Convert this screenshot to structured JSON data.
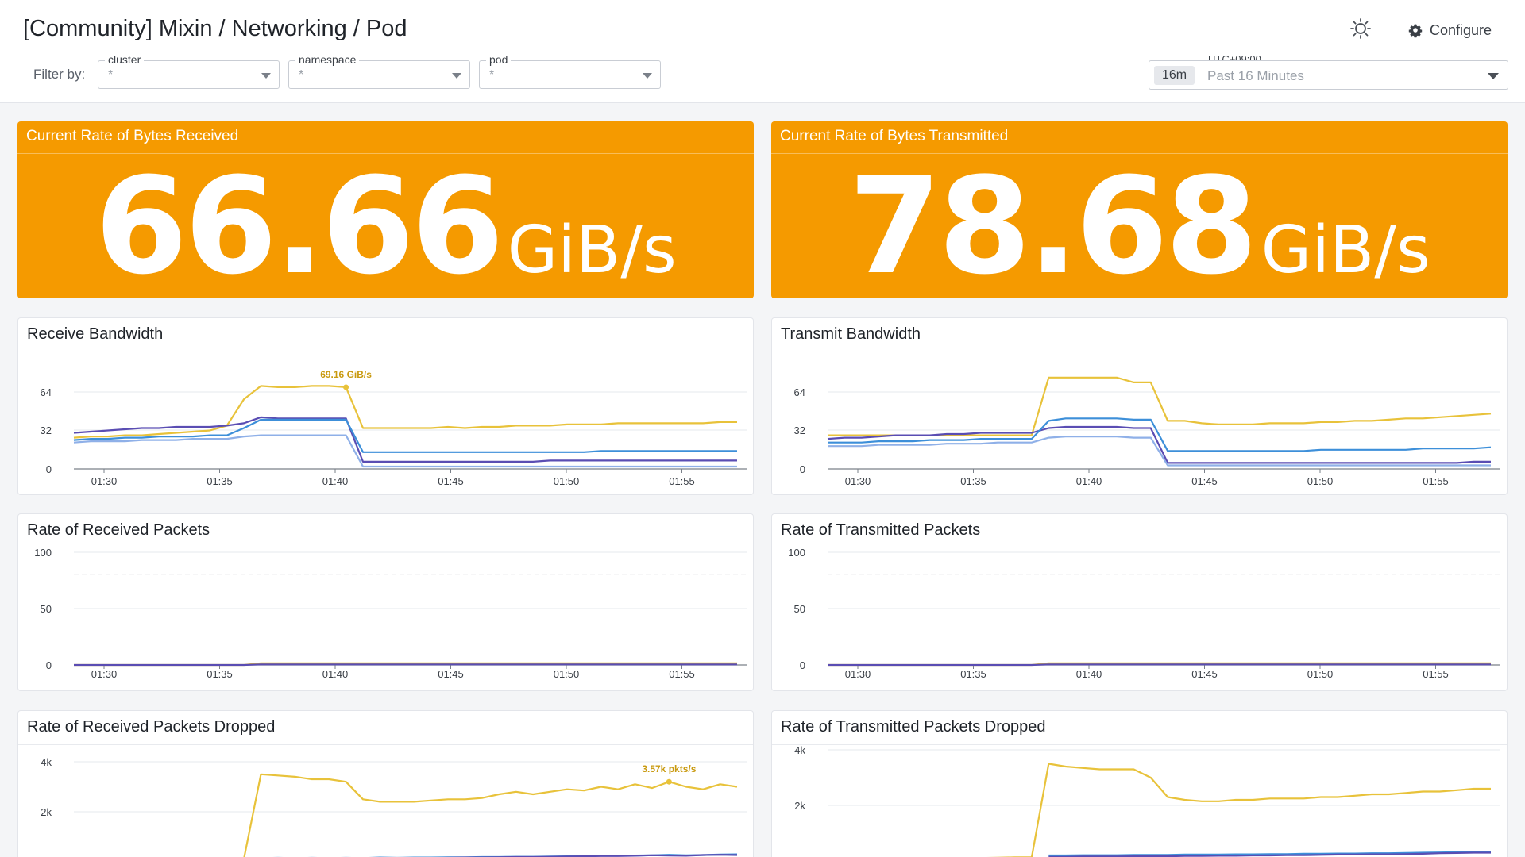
{
  "header": {
    "title": "[Community] Mixin / Networking / Pod",
    "filter_label": "Filter by:",
    "filters": [
      {
        "label": "cluster",
        "value": "*"
      },
      {
        "label": "namespace",
        "value": "*"
      },
      {
        "label": "pod",
        "value": "*"
      }
    ],
    "configure_label": "Configure",
    "timezone": "UTC+09:00",
    "time_chip": "16m",
    "time_range": "Past 16 Minutes"
  },
  "colors": {
    "accent": "#f59a00",
    "yellow": "#e8c23a",
    "purple": "#5a4db3",
    "blue": "#3d8fd9",
    "lightblue": "#8fb0e8"
  },
  "stats": [
    {
      "title": "Current Rate of Bytes Received",
      "value": "66.66",
      "unit": "GiB/s"
    },
    {
      "title": "Current Rate of Bytes Transmitted",
      "value": "78.68",
      "unit": "GiB/s"
    }
  ],
  "chart_data": [
    {
      "title": "Receive Bandwidth",
      "type": "line",
      "x_ticks": [
        "01:30",
        "01:35",
        "01:40",
        "01:45",
        "01:50",
        "01:55"
      ],
      "y_ticks": [
        "0",
        "32",
        "64"
      ],
      "ylim": [
        0,
        80
      ],
      "annotation": "69.16 GiB/s",
      "series": [
        {
          "color": "yellow",
          "values": [
            26,
            27,
            27,
            28,
            28,
            29,
            30,
            31,
            32,
            36,
            58,
            69,
            68,
            68,
            69,
            69,
            68,
            34,
            34,
            34,
            34,
            34,
            35,
            34,
            35,
            35,
            36,
            36,
            36,
            37,
            37,
            37,
            38,
            38,
            38,
            38,
            38,
            38,
            39,
            39
          ]
        },
        {
          "color": "purple",
          "values": [
            30,
            31,
            32,
            33,
            34,
            34,
            35,
            35,
            35,
            36,
            38,
            43,
            42,
            42,
            42,
            42,
            42,
            6,
            6,
            6,
            6,
            6,
            6,
            6,
            6,
            6,
            6,
            6,
            7,
            7,
            7,
            7,
            7,
            7,
            7,
            7,
            7,
            7,
            7,
            7
          ]
        },
        {
          "color": "blue",
          "values": [
            24,
            25,
            25,
            26,
            26,
            27,
            27,
            27,
            28,
            28,
            34,
            41,
            41,
            41,
            41,
            41,
            41,
            14,
            14,
            14,
            14,
            14,
            14,
            14,
            14,
            14,
            14,
            14,
            14,
            14,
            14,
            15,
            15,
            15,
            15,
            15,
            15,
            15,
            15,
            15
          ]
        },
        {
          "color": "lightblue",
          "values": [
            22,
            23,
            23,
            23,
            24,
            24,
            24,
            25,
            25,
            25,
            27,
            28,
            28,
            28,
            28,
            28,
            28,
            2,
            2,
            2,
            2,
            2,
            2,
            2,
            2,
            2,
            2,
            2,
            2,
            2,
            2,
            2,
            2,
            2,
            2,
            2,
            2,
            2,
            2,
            2
          ]
        }
      ]
    },
    {
      "title": "Transmit Bandwidth",
      "type": "line",
      "x_ticks": [
        "01:30",
        "01:35",
        "01:40",
        "01:45",
        "01:50",
        "01:55"
      ],
      "y_ticks": [
        "0",
        "32",
        "64"
      ],
      "ylim": [
        0,
        80
      ],
      "series": [
        {
          "color": "yellow",
          "values": [
            28,
            28,
            28,
            28,
            28,
            28,
            28,
            28,
            28,
            28,
            28,
            28,
            28,
            76,
            76,
            76,
            76,
            76,
            72,
            72,
            40,
            40,
            38,
            37,
            37,
            37,
            38,
            38,
            38,
            39,
            39,
            40,
            40,
            41,
            42,
            42,
            43,
            44,
            45,
            46
          ]
        },
        {
          "color": "purple",
          "values": [
            25,
            26,
            26,
            27,
            28,
            28,
            28,
            29,
            29,
            30,
            30,
            30,
            30,
            34,
            35,
            35,
            35,
            35,
            34,
            34,
            5,
            5,
            5,
            5,
            5,
            5,
            5,
            5,
            5,
            5,
            5,
            5,
            5,
            5,
            5,
            5,
            5,
            5,
            6,
            6
          ]
        },
        {
          "color": "blue",
          "values": [
            22,
            22,
            22,
            23,
            23,
            23,
            24,
            24,
            24,
            25,
            25,
            25,
            25,
            40,
            42,
            42,
            42,
            42,
            41,
            41,
            15,
            15,
            15,
            15,
            15,
            15,
            15,
            15,
            15,
            16,
            16,
            16,
            16,
            16,
            16,
            17,
            17,
            17,
            17,
            18
          ]
        },
        {
          "color": "lightblue",
          "values": [
            19,
            19,
            19,
            20,
            20,
            20,
            20,
            21,
            21,
            21,
            22,
            22,
            22,
            26,
            27,
            27,
            27,
            27,
            26,
            26,
            3,
            3,
            3,
            3,
            3,
            3,
            3,
            3,
            3,
            3,
            3,
            3,
            3,
            3,
            3,
            3,
            3,
            3,
            3,
            3
          ]
        }
      ]
    },
    {
      "title": "Rate of Received Packets",
      "type": "line",
      "x_ticks": [
        "01:30",
        "01:35",
        "01:40",
        "01:45",
        "01:50",
        "01:55"
      ],
      "y_ticks": [
        "0",
        "50",
        "100"
      ],
      "ylim": [
        0,
        100
      ],
      "threshold": 80,
      "series": [
        {
          "color": "yellow",
          "values": [
            0,
            0,
            0,
            0,
            0,
            0,
            0,
            0,
            0,
            0,
            0,
            1.5,
            1.5,
            1.5,
            1.5,
            1.5,
            1.5,
            1.5,
            1.5,
            1.5,
            1.5,
            1.5,
            1.5,
            1.5,
            1.5,
            1.5,
            1.5,
            1.5,
            1.5,
            1.5,
            1.5,
            1.5,
            1.5,
            1.5,
            1.5,
            1.5,
            1.5,
            1.5,
            1.5,
            1.5
          ]
        },
        {
          "color": "purple",
          "values": [
            0,
            0,
            0,
            0,
            0,
            0,
            0,
            0,
            0,
            0,
            0,
            0.5,
            0.5,
            0.5,
            0.5,
            0.5,
            0.5,
            0.5,
            0.5,
            0.5,
            0.5,
            0.5,
            0.5,
            0.5,
            0.5,
            0.5,
            0.5,
            0.5,
            0.5,
            0.5,
            0.5,
            0.5,
            0.5,
            0.5,
            0.5,
            0.5,
            0.5,
            0.5,
            0.5,
            0.5
          ]
        }
      ]
    },
    {
      "title": "Rate of Transmitted Packets",
      "type": "line",
      "x_ticks": [
        "01:30",
        "01:35",
        "01:40",
        "01:45",
        "01:50",
        "01:55"
      ],
      "y_ticks": [
        "0",
        "50",
        "100"
      ],
      "ylim": [
        0,
        100
      ],
      "threshold": 80,
      "series": [
        {
          "color": "yellow",
          "values": [
            0,
            0,
            0,
            0,
            0,
            0,
            0,
            0,
            0,
            0,
            0,
            0,
            0,
            1.5,
            1.5,
            1.5,
            1.5,
            1.5,
            1.5,
            1.5,
            1.5,
            1.5,
            1.5,
            1.5,
            1.5,
            1.5,
            1.5,
            1.5,
            1.5,
            1.5,
            1.5,
            1.5,
            1.5,
            1.5,
            1.5,
            1.5,
            1.5,
            1.5,
            1.5,
            1.5
          ]
        },
        {
          "color": "purple",
          "values": [
            0,
            0,
            0,
            0,
            0,
            0,
            0,
            0,
            0,
            0,
            0,
            0,
            0,
            0.5,
            0.5,
            0.5,
            0.5,
            0.5,
            0.5,
            0.5,
            0.5,
            0.5,
            0.5,
            0.5,
            0.5,
            0.5,
            0.5,
            0.5,
            0.5,
            0.5,
            0.5,
            0.5,
            0.5,
            0.5,
            0.5,
            0.5,
            0.5,
            0.5,
            0.5,
            0.5
          ]
        }
      ]
    },
    {
      "title": "Rate of Received Packets Dropped",
      "type": "line",
      "x_ticks": [],
      "y_ticks": [
        "2k",
        "4k"
      ],
      "ylim": [
        0,
        4000
      ],
      "annotation": "3.57k pkts/s",
      "series": [
        {
          "color": "yellow",
          "values": [
            60,
            60,
            70,
            70,
            70,
            80,
            80,
            80,
            90,
            100,
            120,
            3500,
            3450,
            3400,
            3300,
            3300,
            3200,
            2500,
            2400,
            2400,
            2400,
            2450,
            2500,
            2500,
            2550,
            2700,
            2800,
            2700,
            2800,
            2900,
            2850,
            3000,
            2900,
            3100,
            2950,
            3200,
            3000,
            2900,
            3100,
            3000
          ]
        },
        {
          "color": "blue",
          "values": [
            null,
            null,
            null,
            null,
            null,
            null,
            null,
            null,
            null,
            null,
            null,
            150,
            160,
            150,
            160,
            150,
            160,
            150,
            170,
            160,
            170,
            170,
            180,
            180,
            190,
            190,
            200,
            200,
            210,
            220,
            230,
            240,
            240,
            250,
            260,
            280,
            260,
            270,
            290,
            300
          ]
        },
        {
          "color": "purple",
          "values": [
            null,
            null,
            null,
            null,
            null,
            null,
            null,
            null,
            null,
            null,
            null,
            100,
            110,
            110,
            120,
            120,
            130,
            130,
            130,
            140,
            150,
            150,
            160,
            170,
            170,
            180,
            190,
            190,
            200,
            210,
            220,
            230,
            230,
            240,
            260,
            250,
            240,
            270,
            280,
            270
          ]
        }
      ]
    },
    {
      "title": "Rate of Transmitted Packets Dropped",
      "type": "line",
      "x_ticks": [],
      "y_ticks": [
        "2k",
        "4k"
      ],
      "ylim": [
        0,
        4000
      ],
      "series": [
        {
          "color": "yellow",
          "values": [
            80,
            80,
            90,
            90,
            90,
            90,
            100,
            100,
            110,
            110,
            120,
            130,
            130,
            3500,
            3400,
            3350,
            3300,
            3300,
            3300,
            3000,
            2300,
            2200,
            2150,
            2150,
            2200,
            2200,
            2250,
            2250,
            2250,
            2300,
            2300,
            2350,
            2400,
            2400,
            2450,
            2500,
            2500,
            2550,
            2600,
            2600
          ]
        },
        {
          "color": "blue",
          "values": [
            null,
            null,
            null,
            null,
            null,
            null,
            null,
            null,
            null,
            null,
            null,
            null,
            null,
            200,
            200,
            210,
            210,
            210,
            220,
            220,
            220,
            230,
            230,
            230,
            240,
            240,
            250,
            250,
            260,
            260,
            270,
            270,
            280,
            280,
            290,
            300,
            310,
            320,
            330,
            340
          ]
        },
        {
          "color": "purple",
          "values": [
            null,
            null,
            null,
            null,
            null,
            null,
            null,
            null,
            null,
            null,
            null,
            null,
            null,
            150,
            150,
            160,
            160,
            160,
            170,
            170,
            170,
            180,
            180,
            190,
            190,
            200,
            200,
            210,
            210,
            220,
            230,
            230,
            240,
            240,
            250,
            260,
            280,
            290,
            300,
            300
          ]
        }
      ]
    }
  ]
}
